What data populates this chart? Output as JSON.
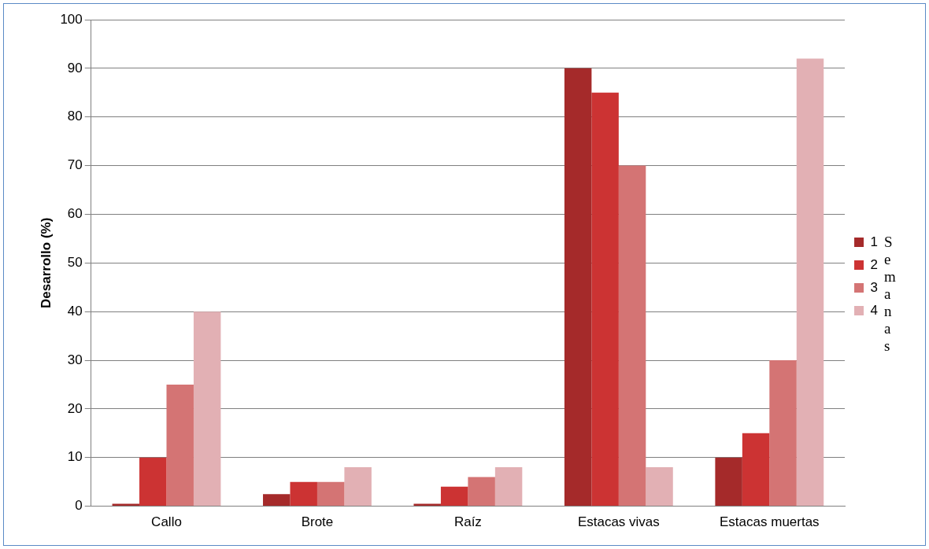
{
  "chart_data": {
    "type": "bar",
    "ylabel": "Desarrollo (%)",
    "legend_title": "Semanas",
    "categories": [
      "Callo",
      "Brote",
      "Raíz",
      "Estacas vivas",
      "Estacas muertas"
    ],
    "series": [
      {
        "name": "1",
        "color": "#a52a2a",
        "values": [
          0.5,
          2.5,
          0.5,
          90,
          10
        ]
      },
      {
        "name": "2",
        "color": "#cc3333",
        "values": [
          10,
          5,
          4,
          85,
          15
        ]
      },
      {
        "name": "3",
        "color": "#d47474",
        "values": [
          25,
          5,
          6,
          70,
          30
        ]
      },
      {
        "name": "4",
        "color": "#e2b0b4",
        "values": [
          40,
          8,
          8,
          8,
          92
        ]
      }
    ],
    "ylim": [
      0,
      100
    ],
    "yticks": [
      0,
      10,
      20,
      30,
      40,
      50,
      60,
      70,
      80,
      90,
      100
    ],
    "grid": "y",
    "legend": "right"
  }
}
